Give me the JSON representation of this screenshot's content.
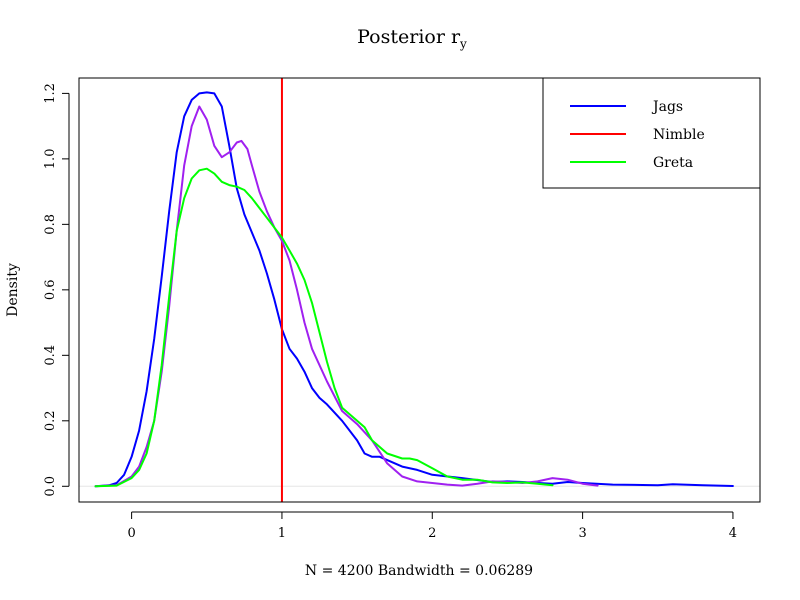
{
  "chart_data": {
    "type": "line",
    "title": "Posterior r",
    "title_subscript": "y",
    "xlabel": "N = 4200   Bandwidth = 0.06289",
    "ylabel": "Density",
    "xlim": [
      -0.35,
      4.18
    ],
    "ylim": [
      -0.048,
      1.247
    ],
    "x_ticks": [
      0,
      1,
      2,
      3,
      4
    ],
    "x_tick_labels": [
      "0",
      "1",
      "2",
      "3",
      "4"
    ],
    "y_ticks": [
      0.0,
      0.2,
      0.4,
      0.6,
      0.8,
      1.0,
      1.2
    ],
    "y_tick_labels": [
      "0.0",
      "0.2",
      "0.4",
      "0.6",
      "0.8",
      "1.0",
      "1.2"
    ],
    "grid": false,
    "legend": {
      "position": "top-right",
      "entries": [
        {
          "label": "Jags",
          "color": "#0000ff"
        },
        {
          "label": "Nimble",
          "color": "#ff0000"
        },
        {
          "label": "Greta",
          "color": "#00ff00"
        }
      ]
    },
    "zero_line_color": "#e6e6e6",
    "series": [
      {
        "name": "Jags",
        "color": "#0000ff",
        "points": [
          [
            -0.24,
            0.0
          ],
          [
            -0.15,
            0.003
          ],
          [
            -0.1,
            0.01
          ],
          [
            -0.05,
            0.035
          ],
          [
            0.0,
            0.09
          ],
          [
            0.05,
            0.17
          ],
          [
            0.1,
            0.29
          ],
          [
            0.15,
            0.45
          ],
          [
            0.2,
            0.64
          ],
          [
            0.25,
            0.84
          ],
          [
            0.3,
            1.02
          ],
          [
            0.35,
            1.13
          ],
          [
            0.4,
            1.18
          ],
          [
            0.45,
            1.2
          ],
          [
            0.5,
            1.203
          ],
          [
            0.55,
            1.2
          ],
          [
            0.6,
            1.16
          ],
          [
            0.65,
            1.04
          ],
          [
            0.7,
            0.91
          ],
          [
            0.75,
            0.83
          ],
          [
            0.8,
            0.775
          ],
          [
            0.85,
            0.72
          ],
          [
            0.9,
            0.65
          ],
          [
            0.95,
            0.57
          ],
          [
            1.0,
            0.48
          ],
          [
            1.05,
            0.42
          ],
          [
            1.1,
            0.39
          ],
          [
            1.15,
            0.35
          ],
          [
            1.2,
            0.3
          ],
          [
            1.25,
            0.27
          ],
          [
            1.3,
            0.25
          ],
          [
            1.4,
            0.2
          ],
          [
            1.5,
            0.14
          ],
          [
            1.55,
            0.1
          ],
          [
            1.6,
            0.09
          ],
          [
            1.65,
            0.09
          ],
          [
            1.7,
            0.08
          ],
          [
            1.8,
            0.06
          ],
          [
            1.9,
            0.05
          ],
          [
            2.0,
            0.035
          ],
          [
            2.2,
            0.025
          ],
          [
            2.4,
            0.013
          ],
          [
            2.5,
            0.015
          ],
          [
            2.6,
            0.013
          ],
          [
            2.7,
            0.01
          ],
          [
            2.8,
            0.008
          ],
          [
            2.9,
            0.013
          ],
          [
            3.0,
            0.01
          ],
          [
            3.2,
            0.005
          ],
          [
            3.4,
            0.004
          ],
          [
            3.5,
            0.003
          ],
          [
            3.6,
            0.006
          ],
          [
            3.8,
            0.003
          ],
          [
            4.0,
            0.001
          ]
        ]
      },
      {
        "name": "Nimble",
        "color": "#ff0000",
        "vertical_line_x": 1.0
      },
      {
        "name": "",
        "color": "#a020f0",
        "points": [
          [
            -0.24,
            0.0
          ],
          [
            -0.1,
            0.003
          ],
          [
            0.0,
            0.03
          ],
          [
            0.05,
            0.06
          ],
          [
            0.1,
            0.12
          ],
          [
            0.15,
            0.2
          ],
          [
            0.2,
            0.35
          ],
          [
            0.25,
            0.55
          ],
          [
            0.3,
            0.78
          ],
          [
            0.35,
            0.98
          ],
          [
            0.4,
            1.1
          ],
          [
            0.45,
            1.16
          ],
          [
            0.5,
            1.12
          ],
          [
            0.55,
            1.04
          ],
          [
            0.6,
            1.005
          ],
          [
            0.65,
            1.02
          ],
          [
            0.7,
            1.05
          ],
          [
            0.73,
            1.055
          ],
          [
            0.77,
            1.03
          ],
          [
            0.8,
            0.98
          ],
          [
            0.85,
            0.9
          ],
          [
            0.9,
            0.84
          ],
          [
            0.95,
            0.79
          ],
          [
            1.0,
            0.75
          ],
          [
            1.05,
            0.69
          ],
          [
            1.1,
            0.6
          ],
          [
            1.15,
            0.5
          ],
          [
            1.2,
            0.42
          ],
          [
            1.3,
            0.32
          ],
          [
            1.4,
            0.23
          ],
          [
            1.5,
            0.19
          ],
          [
            1.6,
            0.14
          ],
          [
            1.7,
            0.07
          ],
          [
            1.8,
            0.03
          ],
          [
            1.9,
            0.015
          ],
          [
            2.0,
            0.01
          ],
          [
            2.1,
            0.005
          ],
          [
            2.2,
            0.002
          ],
          [
            2.3,
            0.008
          ],
          [
            2.4,
            0.015
          ],
          [
            2.5,
            0.013
          ],
          [
            2.6,
            0.01
          ],
          [
            2.7,
            0.015
          ],
          [
            2.8,
            0.025
          ],
          [
            2.9,
            0.02
          ],
          [
            3.0,
            0.008
          ],
          [
            3.1,
            0.002
          ]
        ]
      },
      {
        "name": "Greta",
        "color": "#00ff00",
        "points": [
          [
            -0.24,
            0.0
          ],
          [
            -0.1,
            0.002
          ],
          [
            0.0,
            0.025
          ],
          [
            0.05,
            0.05
          ],
          [
            0.1,
            0.1
          ],
          [
            0.15,
            0.2
          ],
          [
            0.2,
            0.37
          ],
          [
            0.25,
            0.58
          ],
          [
            0.3,
            0.78
          ],
          [
            0.35,
            0.88
          ],
          [
            0.4,
            0.94
          ],
          [
            0.45,
            0.965
          ],
          [
            0.5,
            0.97
          ],
          [
            0.55,
            0.955
          ],
          [
            0.6,
            0.93
          ],
          [
            0.65,
            0.92
          ],
          [
            0.7,
            0.915
          ],
          [
            0.75,
            0.905
          ],
          [
            0.8,
            0.88
          ],
          [
            0.85,
            0.85
          ],
          [
            0.9,
            0.82
          ],
          [
            0.95,
            0.79
          ],
          [
            1.0,
            0.76
          ],
          [
            1.05,
            0.72
          ],
          [
            1.1,
            0.68
          ],
          [
            1.15,
            0.63
          ],
          [
            1.2,
            0.56
          ],
          [
            1.25,
            0.47
          ],
          [
            1.3,
            0.38
          ],
          [
            1.35,
            0.3
          ],
          [
            1.4,
            0.24
          ],
          [
            1.5,
            0.2
          ],
          [
            1.55,
            0.18
          ],
          [
            1.6,
            0.14
          ],
          [
            1.7,
            0.1
          ],
          [
            1.8,
            0.085
          ],
          [
            1.85,
            0.085
          ],
          [
            1.9,
            0.08
          ],
          [
            2.0,
            0.055
          ],
          [
            2.1,
            0.03
          ],
          [
            2.2,
            0.02
          ],
          [
            2.3,
            0.02
          ],
          [
            2.4,
            0.012
          ],
          [
            2.5,
            0.01
          ],
          [
            2.6,
            0.012
          ],
          [
            2.7,
            0.008
          ],
          [
            2.8,
            0.003
          ]
        ]
      }
    ]
  }
}
